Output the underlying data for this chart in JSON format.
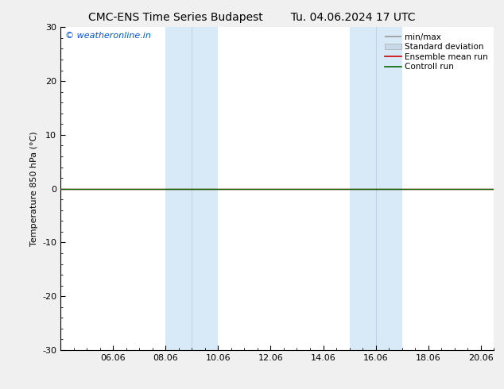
{
  "title": "CMC-ENS Time Series Budapest",
  "title2": "Tu. 04.06.2024 17 UTC",
  "ylabel": "Temperature 850 hPa (°C)",
  "ylim": [
    -30,
    30
  ],
  "yticks": [
    -30,
    -20,
    -10,
    0,
    10,
    20,
    30
  ],
  "xtick_labels": [
    "06.06",
    "08.06",
    "10.06",
    "12.06",
    "14.06",
    "16.06",
    "18.06",
    "20.06"
  ],
  "xtick_days": [
    6,
    8,
    10,
    12,
    14,
    16,
    18,
    20
  ],
  "xlim": [
    4.0,
    20.5
  ],
  "watermark": "© weatheronline.in",
  "watermark_color": "#0055cc",
  "background_color": "#f0f0f0",
  "plot_bg_color": "#ffffff",
  "shaded_bands": [
    {
      "x_start": 8.0,
      "x_end": 10.0,
      "color": "#d8eaf8"
    },
    {
      "x_start": 15.0,
      "x_end": 17.0,
      "color": "#d8eaf8"
    }
  ],
  "control_run_color": "#006600",
  "ensemble_mean_color": "#cc0000",
  "minmax_color": "#999999",
  "stddev_color": "#c8daea",
  "legend_labels": [
    "min/max",
    "Standard deviation",
    "Ensemble mean run",
    "Controll run"
  ],
  "font_color": "#000000",
  "tick_color": "#000000",
  "border_color": "#000000",
  "title_fontsize": 10,
  "label_fontsize": 8,
  "tick_fontsize": 8,
  "legend_fontsize": 7.5
}
